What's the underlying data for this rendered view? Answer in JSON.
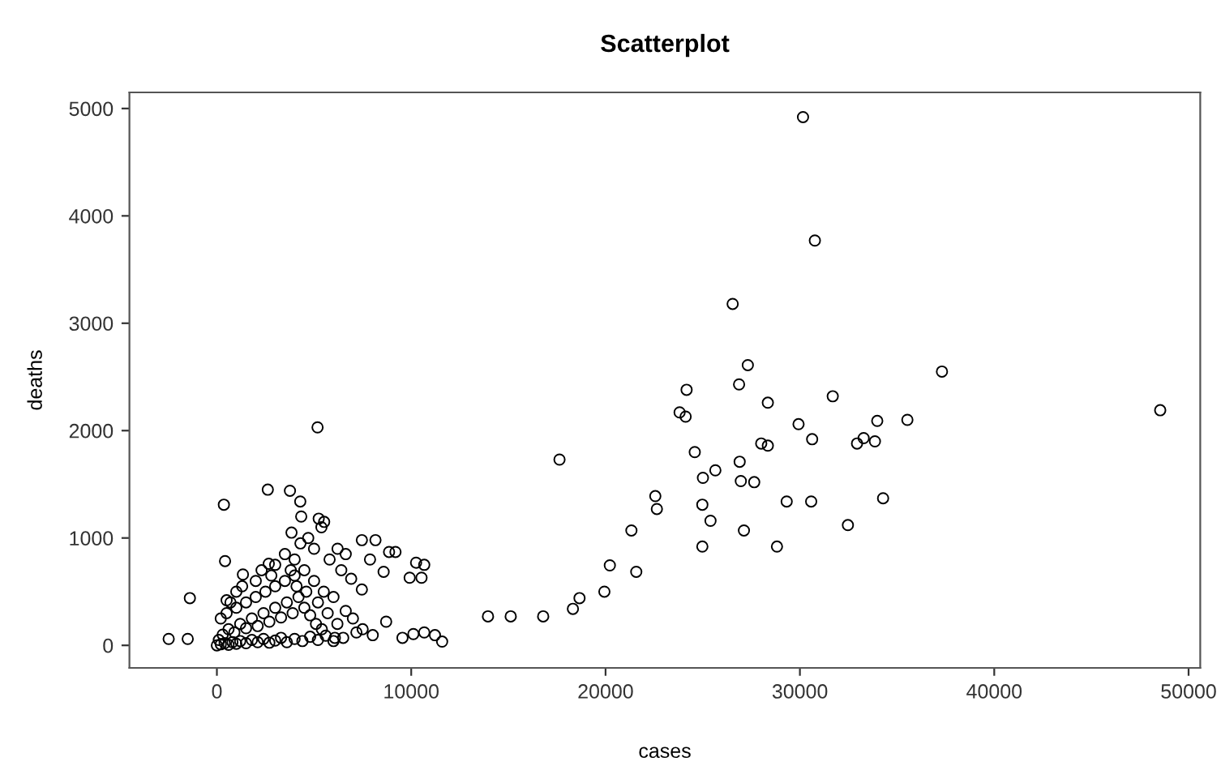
{
  "chart_data": {
    "type": "scatter",
    "title": "Scatterplot",
    "xlabel": "cases",
    "ylabel": "deaths",
    "xlim": [
      -4500,
      50600
    ],
    "ylim": [
      -210,
      5150
    ],
    "xticks": [
      0,
      10000,
      20000,
      30000,
      40000,
      50000
    ],
    "yticks": [
      0,
      1000,
      2000,
      3000,
      4000,
      5000
    ],
    "grid": false,
    "legend": false,
    "marker": "circle",
    "series": [
      {
        "color": "#000000",
        "x": [
          30160,
          30770,
          26540,
          27320,
          26870,
          24170,
          28350,
          31690,
          37310,
          48540,
          23810,
          24120,
          29930,
          30630,
          33980,
          35530,
          32940,
          33280,
          33860,
          28010,
          28350,
          24590,
          26900,
          25650,
          25010,
          26960,
          27650,
          22560,
          22640,
          17630,
          24980,
          29320,
          30580,
          34280,
          25400,
          27120,
          32470,
          21330,
          24980,
          28820,
          20220,
          21580,
          19940,
          18660,
          18320,
          16790,
          15120,
          13950,
          5180,
          360,
          2620,
          3760,
          4290,
          -1390,
          -2480,
          -1500,
          420,
          4340,
          5240,
          5520,
          5380,
          3840,
          7460,
          8160,
          7880,
          8860,
          9190,
          10250,
          10670,
          9920,
          10530,
          8580,
          6210,
          6630,
          6910,
          7460,
          6630,
          1340,
          2670,
          500,
          8710,
          7180,
          8020,
          9550,
          10110,
          10670,
          11220,
          11590,
          6070,
          0,
          200,
          400,
          600,
          800,
          1000,
          1200,
          1500,
          1800,
          2100,
          2400,
          2700,
          3000,
          3300,
          3600,
          4000,
          4400,
          4800,
          5200,
          5600,
          6000,
          6500,
          300,
          600,
          900,
          1200,
          1500,
          1800,
          2100,
          2400,
          2700,
          3000,
          3300,
          3600,
          3900,
          4200,
          4500,
          4800,
          5100,
          5400,
          500,
          1000,
          1500,
          2000,
          2500,
          3000,
          3500,
          4000,
          4500,
          5000,
          5500,
          6000,
          1000,
          2000,
          3000,
          3500,
          4000,
          4300,
          4700,
          5000,
          5800,
          6400,
          200,
          100,
          700,
          1300,
          2300,
          2800,
          3800,
          4100,
          4600,
          5200,
          5700,
          6200,
          7000,
          7500
        ],
        "values": [
          4920,
          3770,
          3180,
          2610,
          2430,
          2380,
          2260,
          2320,
          2550,
          2190,
          2170,
          2130,
          2060,
          1920,
          2090,
          2100,
          1880,
          1930,
          1900,
          1880,
          1860,
          1800,
          1710,
          1630,
          1560,
          1530,
          1520,
          1390,
          1270,
          1730,
          1310,
          1340,
          1340,
          1370,
          1160,
          1070,
          1120,
          1070,
          920,
          920,
          745,
          685,
          500,
          440,
          340,
          270,
          270,
          270,
          2030,
          1310,
          1450,
          1440,
          1340,
          440,
          60,
          60,
          785,
          1200,
          1180,
          1150,
          1100,
          1050,
          980,
          980,
          800,
          870,
          870,
          770,
          750,
          630,
          630,
          685,
          900,
          850,
          620,
          520,
          320,
          660,
          760,
          420,
          220,
          120,
          95,
          70,
          105,
          120,
          95,
          35,
          70,
          0,
          10,
          20,
          5,
          30,
          15,
          40,
          20,
          50,
          30,
          60,
          25,
          45,
          70,
          30,
          60,
          40,
          80,
          50,
          90,
          40,
          70,
          100,
          150,
          120,
          200,
          160,
          250,
          180,
          300,
          220,
          350,
          260,
          400,
          300,
          450,
          350,
          280,
          200,
          150,
          300,
          350,
          400,
          450,
          500,
          550,
          600,
          650,
          700,
          600,
          500,
          450,
          500,
          600,
          750,
          850,
          800,
          950,
          1000,
          900,
          800,
          700,
          250,
          50,
          400,
          550,
          700,
          650,
          700,
          550,
          500,
          400,
          300,
          200,
          250,
          150
        ]
      }
    ]
  }
}
